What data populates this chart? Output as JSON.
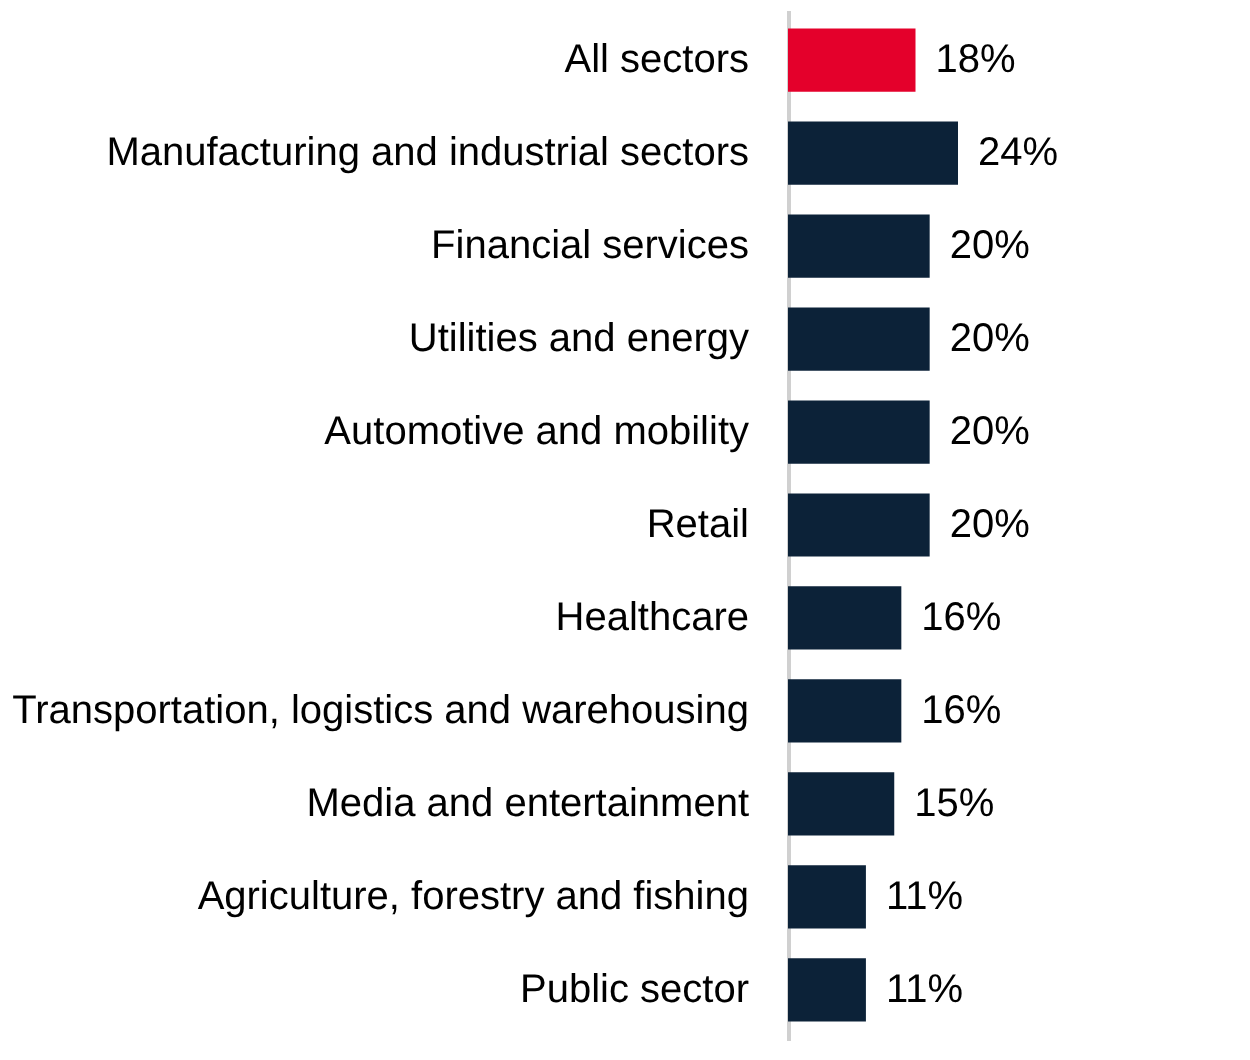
{
  "chart_data": {
    "type": "bar",
    "orientation": "horizontal",
    "categories": [
      "All sectors",
      "Manufacturing and industrial sectors",
      "Financial services",
      "Utilities and energy",
      "Automotive and mobility",
      "Retail",
      "Healthcare",
      "Transportation, logistics and warehousing",
      "Media and entertainment",
      "Agriculture, forestry and fishing",
      "Public sector"
    ],
    "values": [
      18,
      24,
      20,
      20,
      20,
      20,
      16,
      16,
      15,
      11,
      11
    ],
    "colors": [
      "#e4002b",
      "#0c2238",
      "#0c2238",
      "#0c2238",
      "#0c2238",
      "#0c2238",
      "#0c2238",
      "#0c2238",
      "#0c2238",
      "#0c2238",
      "#0c2238"
    ],
    "value_labels": [
      "18%",
      "24%",
      "20%",
      "20%",
      "20%",
      "20%",
      "16%",
      "16%",
      "15%",
      "11%",
      "11%"
    ]
  }
}
